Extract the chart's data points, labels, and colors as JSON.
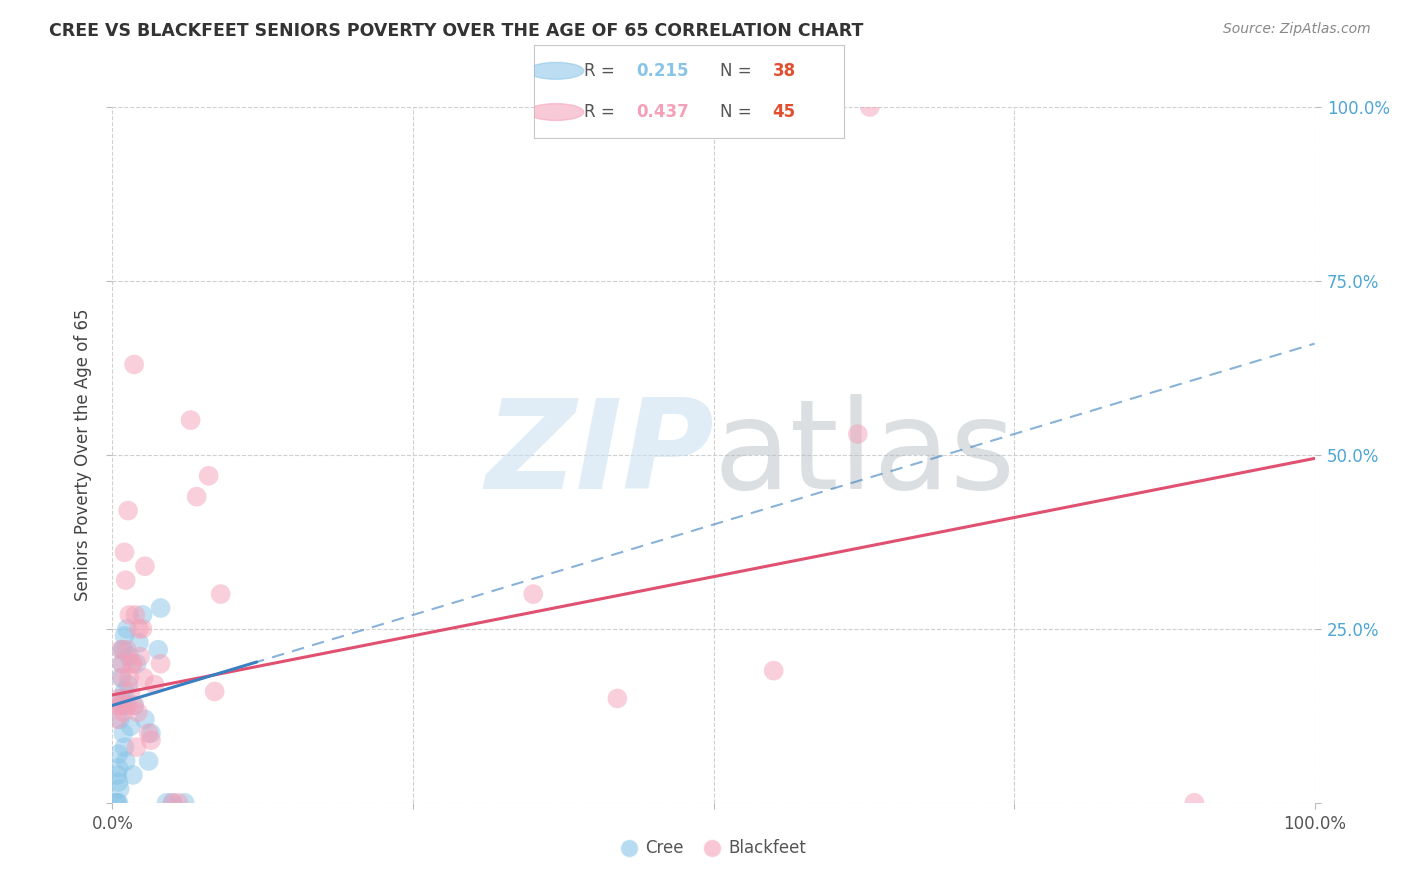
{
  "title": "CREE VS BLACKFEET SENIORS POVERTY OVER THE AGE OF 65 CORRELATION CHART",
  "source": "Source: ZipAtlas.com",
  "ylabel": "Seniors Poverty Over the Age of 65",
  "xlim": [
    0,
    1.0
  ],
  "ylim": [
    0,
    1.0
  ],
  "xtick_vals": [
    0,
    0.25,
    0.5,
    0.75,
    1.0
  ],
  "ytick_vals": [
    0,
    0.25,
    0.5,
    0.75,
    1.0
  ],
  "cree_color": "#88c4e8",
  "blackfeet_color": "#f4a0b8",
  "cree_line_color": "#3a7fc1",
  "blackfeet_line_color": "#e05070",
  "N_color": "#e05030",
  "R_val_cree_color": "#88c4e8",
  "R_val_bf_color": "#f4a0b8",
  "cree_R": "0.215",
  "cree_N": "38",
  "blackfeet_R": "0.437",
  "blackfeet_N": "45",
  "background_color": "#ffffff",
  "grid_color": "#d0d0d0",
  "cree_line_b": 0.14,
  "cree_line_m": 0.52,
  "bf_line_b": 0.155,
  "bf_line_m": 0.34,
  "cree_x": [
    0.003,
    0.004,
    0.004,
    0.005,
    0.005,
    0.005,
    0.005,
    0.006,
    0.006,
    0.007,
    0.007,
    0.008,
    0.008,
    0.008,
    0.009,
    0.009,
    0.01,
    0.01,
    0.01,
    0.011,
    0.011,
    0.012,
    0.013,
    0.014,
    0.015,
    0.017,
    0.018,
    0.02,
    0.022,
    0.025,
    0.027,
    0.03,
    0.032,
    0.038,
    0.04,
    0.045,
    0.05,
    0.06
  ],
  "cree_y": [
    0.0,
    0.0,
    0.04,
    0.0,
    0.03,
    0.05,
    0.07,
    0.02,
    0.12,
    0.18,
    0.14,
    0.22,
    0.15,
    0.2,
    0.1,
    0.22,
    0.16,
    0.24,
    0.08,
    0.14,
    0.06,
    0.25,
    0.17,
    0.21,
    0.11,
    0.04,
    0.14,
    0.2,
    0.23,
    0.27,
    0.12,
    0.06,
    0.1,
    0.22,
    0.28,
    0.0,
    0.0,
    0.0
  ],
  "blackfeet_x": [
    0.004,
    0.005,
    0.006,
    0.007,
    0.007,
    0.008,
    0.008,
    0.009,
    0.01,
    0.011,
    0.012,
    0.013,
    0.013,
    0.014,
    0.014,
    0.015,
    0.016,
    0.017,
    0.018,
    0.018,
    0.019,
    0.02,
    0.021,
    0.022,
    0.023,
    0.025,
    0.026,
    0.027,
    0.03,
    0.032,
    0.035,
    0.04,
    0.05,
    0.055,
    0.065,
    0.07,
    0.08,
    0.085,
    0.09,
    0.35,
    0.42,
    0.55,
    0.62,
    0.63,
    0.9
  ],
  "blackfeet_y": [
    0.12,
    0.15,
    0.14,
    0.22,
    0.14,
    0.2,
    0.18,
    0.13,
    0.36,
    0.32,
    0.22,
    0.14,
    0.42,
    0.18,
    0.27,
    0.16,
    0.2,
    0.2,
    0.14,
    0.63,
    0.27,
    0.08,
    0.13,
    0.25,
    0.21,
    0.25,
    0.18,
    0.34,
    0.1,
    0.09,
    0.17,
    0.2,
    0.0,
    0.0,
    0.55,
    0.44,
    0.47,
    0.16,
    0.3,
    0.3,
    0.15,
    0.19,
    0.53,
    1.0,
    0.0
  ]
}
